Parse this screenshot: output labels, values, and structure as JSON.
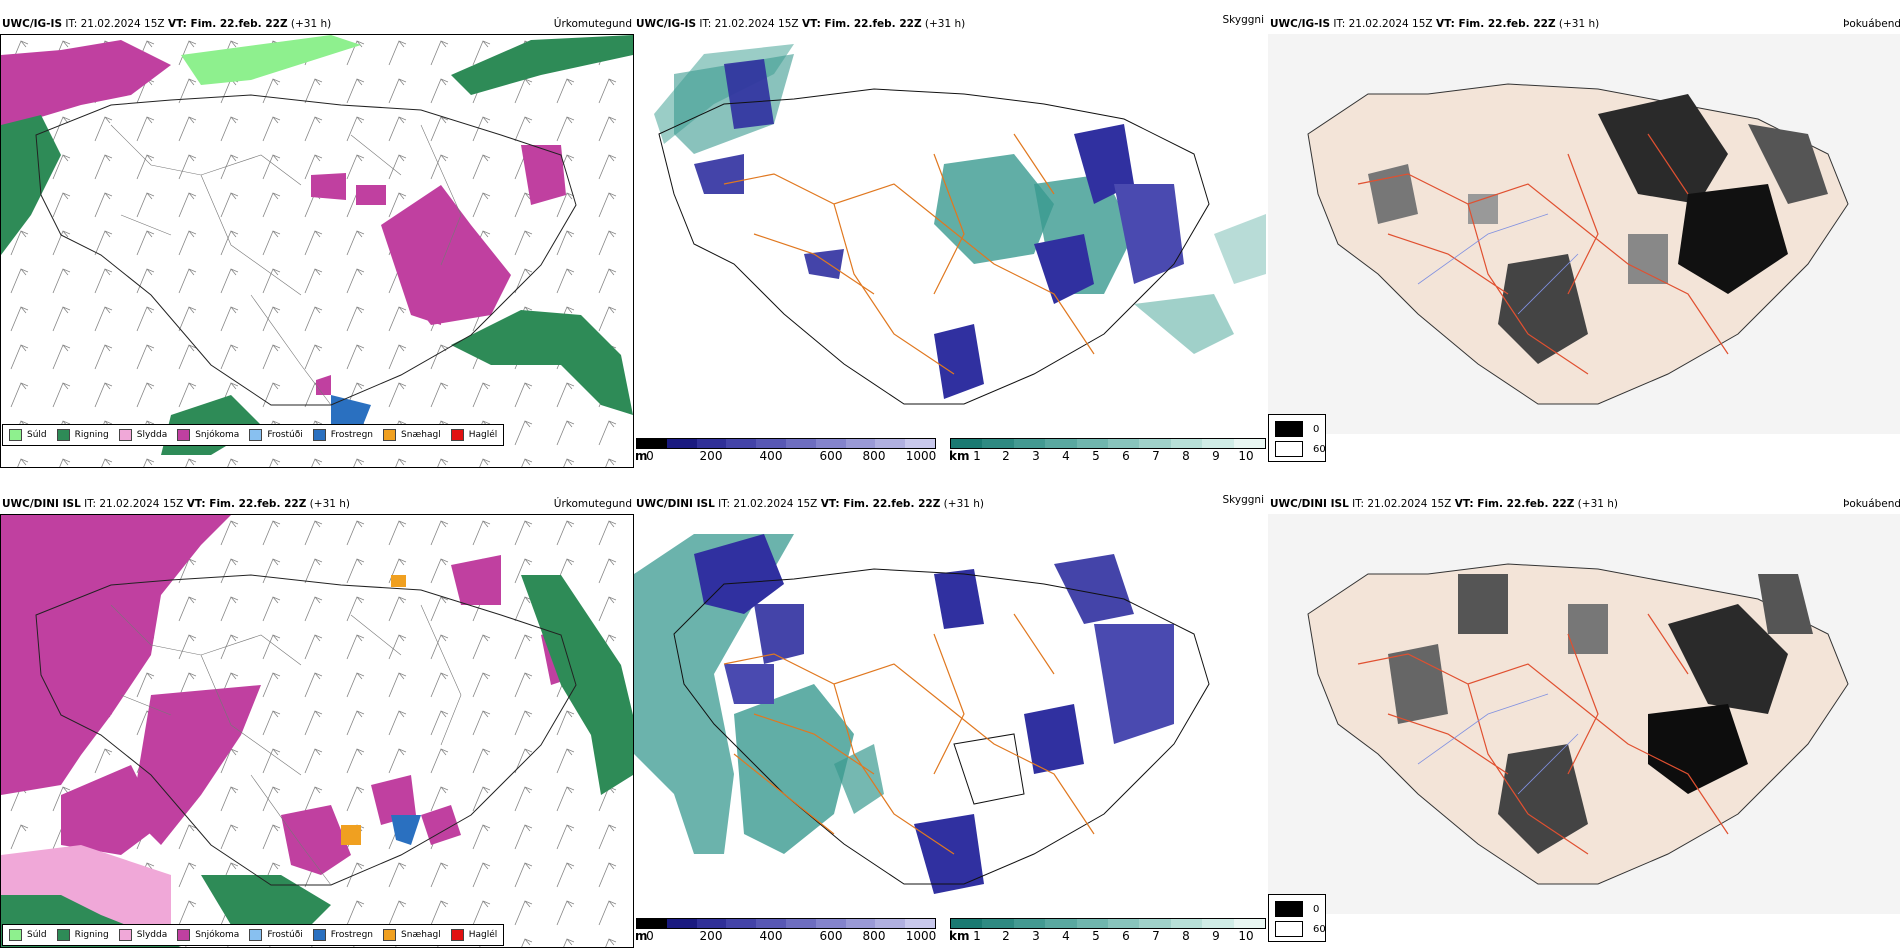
{
  "panels": {
    "p1": {
      "model": "UWC/IG-IS",
      "it": "IT: 21.02.2024 15Z",
      "vt": "VT: Fim. 22.feb. 22Z",
      "lead": "(+31 h)",
      "right": "Úrkomutegund"
    },
    "p2": {
      "model": "UWC/IG-IS",
      "it": "IT: 21.02.2024 15Z",
      "vt": "VT: Fim. 22.feb. 22Z",
      "lead": "(+31 h)",
      "right": "Skyggni"
    },
    "p3": {
      "model": "UWC/IG-IS",
      "it": "IT: 21.02.2024 15Z",
      "vt": "VT: Fim. 22.feb. 22Z",
      "lead": "(+31 h)",
      "right": "Þokuábendi"
    },
    "p4": {
      "model": "UWC/DINI ISL",
      "it": "IT: 21.02.2024 15Z",
      "vt": "VT: Fim. 22.feb. 22Z",
      "lead": "(+31 h)",
      "right": "Úrkomutegund"
    },
    "p5": {
      "model": "UWC/DINI ISL",
      "it": "IT: 21.02.2024 15Z",
      "vt": "VT: Fim. 22.feb. 22Z",
      "lead": "(+31 h)",
      "right": "Skyggni"
    },
    "p6": {
      "model": "UWC/DINI ISL",
      "it": "IT: 21.02.2024 15Z",
      "vt": "VT: Fim. 22.feb. 22Z",
      "lead": "(+31 h)",
      "right": "Þokuábendi"
    }
  },
  "precip_legend": [
    {
      "label": "Súld",
      "color": "#8ef08e"
    },
    {
      "label": "Rigning",
      "color": "#2e8b57"
    },
    {
      "label": "Slydda",
      "color": "#f0a8d8"
    },
    {
      "label": "Snjókoma",
      "color": "#c040a0"
    },
    {
      "label": "Frostúði",
      "color": "#88c0f0"
    },
    {
      "label": "Frostregn",
      "color": "#2a70c0"
    },
    {
      "label": "Snæhagl",
      "color": "#f0a020"
    },
    {
      "label": "Haglél",
      "color": "#e01010"
    }
  ],
  "cbar_m": {
    "unit": "m",
    "ticks": [
      "0",
      "200",
      "400",
      "600",
      "800",
      "1000"
    ],
    "colors": [
      "#000000",
      "#1a1a80",
      "#303098",
      "#4444a8",
      "#5858b4",
      "#6e6ec0",
      "#8484cc",
      "#9a9ad6",
      "#b0b0e0",
      "#c8c8ec"
    ]
  },
  "cbar_km": {
    "unit": "km",
    "ticks": [
      "1",
      "2",
      "3",
      "4",
      "5",
      "6",
      "7",
      "8",
      "9",
      "10"
    ],
    "colors": [
      "#1a7a72",
      "#2e8a82",
      "#449a92",
      "#5aa8a0",
      "#70b6ae",
      "#88c4bc",
      "#a0d2ca",
      "#b8e0d8",
      "#d0ece6",
      "#e8f6f2"
    ]
  },
  "fog_legend": [
    {
      "label": "0",
      "color": "#000000"
    },
    {
      "label": "60",
      "color": "#ffffff"
    }
  ],
  "colors": {
    "rain": "#2e8b57",
    "snow": "#c040a0",
    "drizzle": "#8ef08e",
    "sleet": "#f0a8d8",
    "frz_rain": "#2a70c0",
    "snowpellet": "#f0a020",
    "vis_low": "#3030a0",
    "vis_high": "#3a9a90",
    "roads": "#e07820",
    "fog_land": "#f3e4d8",
    "fog_roads": "#e05030"
  }
}
